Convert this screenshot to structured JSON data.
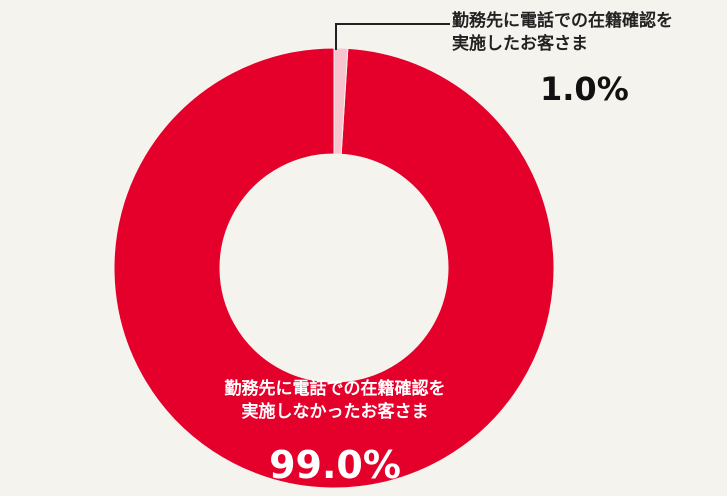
{
  "chart_data": {
    "type": "pie",
    "categories": [
      "勤務先に電話での在籍確認を\n実施したお客さま",
      "勤務先に電話での在籍確認を\n実施しなかったお客さま"
    ],
    "values": [
      1.0,
      99.0
    ],
    "value_labels": [
      "1.0%",
      "99.0%"
    ],
    "colors": [
      "#f7c3cf",
      "#e4002b"
    ]
  }
}
